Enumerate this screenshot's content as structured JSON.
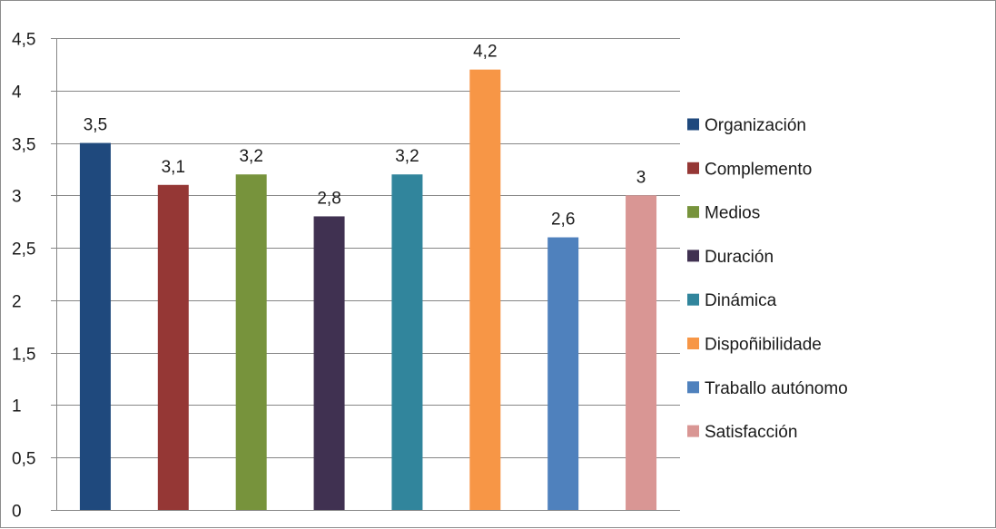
{
  "chart_data": {
    "type": "bar",
    "categories": [
      "Organización",
      "Complemento",
      "Medios",
      "Duración",
      "Dinámica",
      "Dispoñibilidade",
      "Traballo autónomo",
      "Satisfacción"
    ],
    "values": [
      3.5,
      3.1,
      3.2,
      2.8,
      3.2,
      4.2,
      2.6,
      3.0
    ],
    "value_labels": [
      "3,5",
      "3,1",
      "3,2",
      "2,8",
      "3,2",
      "4,2",
      "2,6",
      "3"
    ],
    "colors": [
      "#1f497d",
      "#953735",
      "#77933c",
      "#403151",
      "#31859c",
      "#f79646",
      "#4f81bd",
      "#d99694"
    ],
    "title": "",
    "xlabel": "",
    "ylabel": "",
    "ylim": [
      0,
      4.5
    ],
    "yticks": [
      0,
      0.5,
      1,
      1.5,
      2,
      2.5,
      3,
      3.5,
      4,
      4.5
    ],
    "ytick_labels": [
      "0",
      "0,5",
      "1",
      "1,5",
      "2",
      "2,5",
      "3",
      "3,5",
      "4",
      "4,5"
    ],
    "grid": true,
    "legend_position": "right",
    "gridline_color": "#868686"
  }
}
